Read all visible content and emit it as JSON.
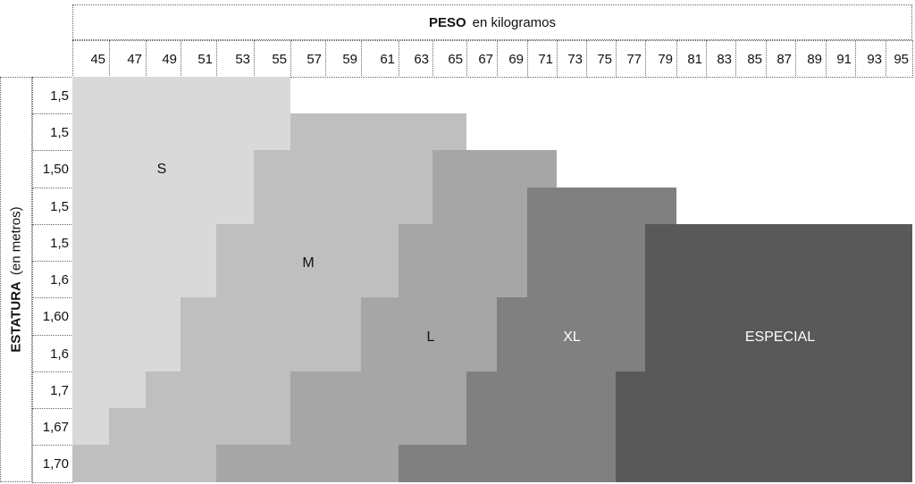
{
  "header": {
    "title_bold": "PESO",
    "title_rest": "en kilogramos"
  },
  "side": {
    "title_bold": "ESTATURA",
    "title_rest": "(en metros)"
  },
  "weights": [
    "45",
    "47",
    "49",
    "51",
    "53",
    "55",
    "57",
    "59",
    "61",
    "63",
    "65",
    "67",
    "69",
    "71",
    "73",
    "75",
    "77",
    "79",
    "81",
    "83",
    "85",
    "87",
    "89",
    "91",
    "93",
    "95"
  ],
  "heights": [
    "1,5",
    "1,5",
    "1,50",
    "1,5",
    "1,5",
    "1,6",
    "1,60",
    "1,6",
    "1,7",
    "1,67",
    "1,70"
  ],
  "sizes": {
    "S": {
      "label": "S",
      "color": "#d9d9d9",
      "text_color": "#111111"
    },
    "M": {
      "label": "M",
      "color": "#bfbfbf",
      "text_color": "#111111"
    },
    "L": {
      "label": "L",
      "color": "#a6a6a6",
      "text_color": "#111111"
    },
    "XL": {
      "label": "XL",
      "color": "#808080",
      "text_color": "#ffffff"
    },
    "E": {
      "label": "ESPECIAL",
      "color": "#595959",
      "text_color": "#ffffff"
    }
  },
  "grid": [
    [
      [
        "S",
        "45",
        "55"
      ]
    ],
    [
      [
        "S",
        "45",
        "55"
      ],
      [
        "M",
        "57",
        "65"
      ]
    ],
    [
      [
        "S",
        "45",
        "53"
      ],
      [
        "M",
        "55",
        "63"
      ],
      [
        "L",
        "65",
        "71"
      ]
    ],
    [
      [
        "S",
        "45",
        "53"
      ],
      [
        "M",
        "55",
        "63"
      ],
      [
        "L",
        "65",
        "69"
      ],
      [
        "XL",
        "71",
        "79"
      ]
    ],
    [
      [
        "S",
        "45",
        "51"
      ],
      [
        "M",
        "53",
        "61"
      ],
      [
        "L",
        "63",
        "69"
      ],
      [
        "XL",
        "71",
        "77"
      ],
      [
        "E",
        "79",
        "95"
      ]
    ],
    [
      [
        "S",
        "45",
        "51"
      ],
      [
        "M",
        "53",
        "61"
      ],
      [
        "L",
        "63",
        "69"
      ],
      [
        "XL",
        "71",
        "77"
      ],
      [
        "E",
        "79",
        "95"
      ]
    ],
    [
      [
        "S",
        "45",
        "49"
      ],
      [
        "M",
        "51",
        "59"
      ],
      [
        "L",
        "61",
        "67"
      ],
      [
        "XL",
        "69",
        "77"
      ],
      [
        "E",
        "79",
        "95"
      ]
    ],
    [
      [
        "S",
        "45",
        "49"
      ],
      [
        "M",
        "51",
        "59"
      ],
      [
        "L",
        "61",
        "67"
      ],
      [
        "XL",
        "69",
        "77"
      ],
      [
        "E",
        "79",
        "95"
      ]
    ],
    [
      [
        "S",
        "45",
        "47"
      ],
      [
        "M",
        "49",
        "55"
      ],
      [
        "L",
        "57",
        "65"
      ],
      [
        "XL",
        "67",
        "75"
      ],
      [
        "E",
        "77",
        "95"
      ]
    ],
    [
      [
        "S",
        "45",
        "45"
      ],
      [
        "M",
        "47",
        "55"
      ],
      [
        "L",
        "57",
        "65"
      ],
      [
        "XL",
        "67",
        "75"
      ],
      [
        "E",
        "77",
        "95"
      ]
    ],
    [
      [
        "M",
        "45",
        "51"
      ],
      [
        "L",
        "53",
        "61"
      ],
      [
        "XL",
        "63",
        "75"
      ],
      [
        "E",
        "77",
        "95"
      ]
    ]
  ]
}
